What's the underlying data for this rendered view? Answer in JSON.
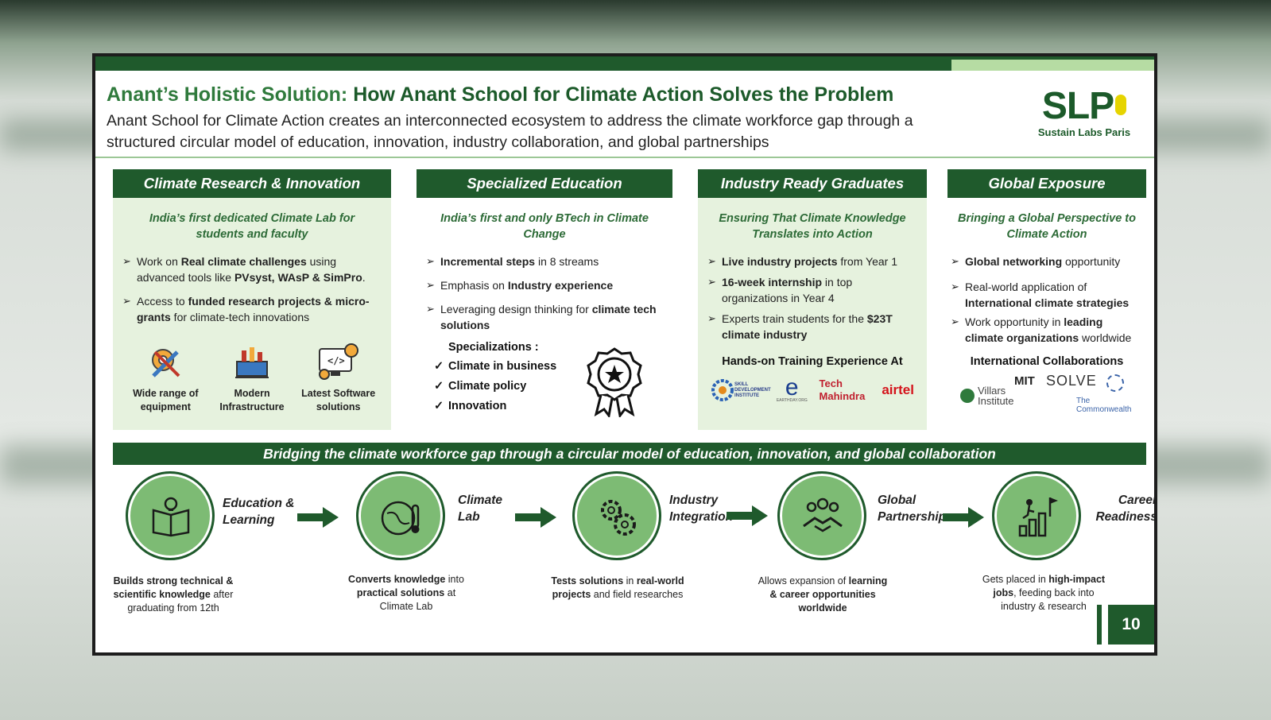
{
  "slide": {
    "title_part1": "Anant’s Holistic Solution:",
    "title_part2": "How Anant School for Climate Action Solves the Problem",
    "subtitle": "Anant School for Climate Action creates an interconnected ecosystem to address the climate workforce gap through a structured circular model of education, innovation, industry collaboration, and global partnerships",
    "logo_text": "SLP",
    "logo_sub": "Sustain Labs Paris",
    "page_number": "10"
  },
  "columns": {
    "research": {
      "heading": "Climate Research & Innovation",
      "lead": "India’s first dedicated Climate Lab for students and faculty",
      "b1_pre": "Work on ",
      "b1_bold": "Real climate challenges",
      "b1_mid": " using advanced tools like ",
      "b1_bold2": "PVsyst, WAsP & SimPro",
      "b1_end": ".",
      "b2_pre": "Access to ",
      "b2_bold": "funded research projects & micro-grants",
      "b2_end": " for climate-tech innovations",
      "icon1": "Wide range of equipment",
      "icon2": "Modern Infrastructure",
      "icon3": "Latest Software solutions"
    },
    "education": {
      "heading": "Specialized Education",
      "lead": "India’s first and only BTech in Climate Change",
      "b1_bold": "Incremental steps",
      "b1_end": " in 8 streams",
      "b2_pre": "Emphasis on ",
      "b2_bold": "Industry experience",
      "b3_pre": "Leveraging design thinking for ",
      "b3_bold": "climate tech solutions",
      "spec_head": "Specializations :",
      "spec1": "Climate in business",
      "spec2": "Climate policy",
      "spec3": "Innovation"
    },
    "industry": {
      "heading": "Industry Ready Graduates",
      "lead": "Ensuring That Climate Knowledge Translates into Action",
      "b1_bold": "Live industry projects",
      "b1_end": " from Year 1",
      "b2_bold": "16-week internship",
      "b2_end": " in top organizations in Year 4",
      "b3_pre": "Experts train students for the ",
      "b3_bold": "$23T climate industry",
      "training_head": "Hands-on Training Experience At",
      "partner1": "SKILL DEVELOPMENT INSTITUTE",
      "partner2": "EARTHDAY.ORG",
      "partner3": "Tech Mahindra",
      "partner4": "airtel"
    },
    "global": {
      "heading": "Global Exposure",
      "lead": "Bringing a Global Perspective to Climate Action",
      "b1_bold": "Global networking",
      "b1_end": " opportunity",
      "b2_pre": "Real-world application of ",
      "b2_bold": "International climate strategies",
      "b3_pre": "Work opportunity in ",
      "b3_bold": "leading climate organizations",
      "b3_end": " worldwide",
      "collab_head": "International Collaborations",
      "partner1": "MIT",
      "partner2": "SOLVE",
      "partner3": "Villars Institute",
      "partner4": "The Commonwealth"
    }
  },
  "band": "Bridging the climate workforce gap through a circular model of education, innovation, and global collaboration",
  "steps": [
    {
      "label": "Education & Learning",
      "desc_bold": "Builds strong technical & scientific knowledge",
      "desc_end": " after graduating from 12th"
    },
    {
      "label": "Climate Lab",
      "desc_bold": "Converts knowledge",
      "desc_mid": " into ",
      "desc_bold2": "practical solutions",
      "desc_end": " at Climate Lab"
    },
    {
      "label": "Industry Integration",
      "desc_bold": "Tests solutions",
      "desc_mid": " in ",
      "desc_bold2": "real-world projects",
      "desc_end": " and field researches"
    },
    {
      "label": "Global Partnerships",
      "desc_pre": "Allows expansion of ",
      "desc_bold": "learning & career opportunities worldwide"
    },
    {
      "label": "Career Readiness",
      "desc_pre": "Gets placed in ",
      "desc_bold": "high-impact jobs",
      "desc_end": ", feeding back into industry & research"
    }
  ],
  "colors": {
    "primary": "#1f5a2c",
    "light": "#e6f2de",
    "circle": "#7dbb74"
  }
}
